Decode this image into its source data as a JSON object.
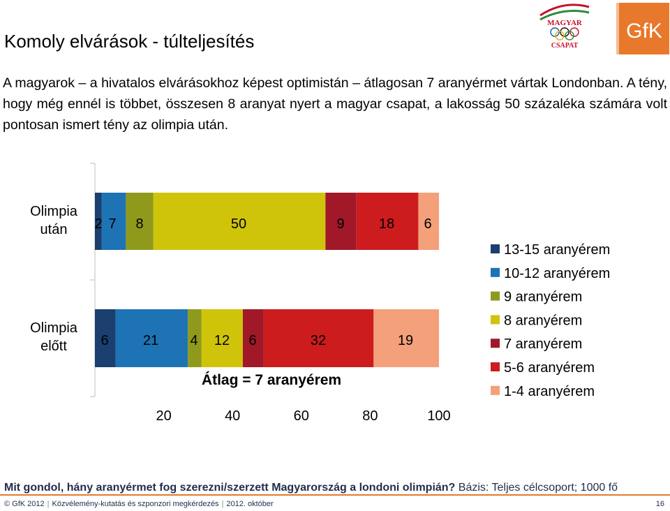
{
  "title": "Komoly elvárások - túlteljesítés",
  "intro": "A magyarok – a hivatalos elvárásokhoz képest optimistán – átlagosan 7 aranyérmet vártak Londonban. A tény, hogy még ennél is többet, összesen 8 aranyat nyert a magyar csapat, a lakosság 50 százaléka számára volt pontosan ismert tény az olimpia után.",
  "logos": {
    "magyar_line1": "MAGYAR",
    "magyar_line2": "CSAPAT",
    "gfk": "GfK"
  },
  "chart_data": {
    "type": "bar",
    "orientation": "horizontal-stacked",
    "categories": [
      "Olimpia után",
      "Olimpia előtt"
    ],
    "series": [
      {
        "name": "13-15 aranyérem",
        "color": "#1b3f6e",
        "values": [
          2,
          6
        ]
      },
      {
        "name": "10-12 aranyérem",
        "color": "#1e73b5",
        "values": [
          7,
          21
        ]
      },
      {
        "name": "9 aranyérem",
        "color": "#8f9a1c",
        "values": [
          8,
          4
        ]
      },
      {
        "name": "8 aranyérem",
        "color": "#cfc40a",
        "values": [
          50,
          12
        ]
      },
      {
        "name": "7 aranyérem",
        "color": "#a11828",
        "values": [
          9,
          6
        ]
      },
      {
        "name": "5-6 aranyérem",
        "color": "#cc1c1e",
        "values": [
          18,
          32
        ]
      },
      {
        "name": "1-4 aranyérem",
        "color": "#f4a07a",
        "values": [
          6,
          19
        ]
      }
    ],
    "xlim": [
      0,
      100
    ],
    "xticks": [
      20,
      40,
      60,
      80,
      100
    ],
    "annotation": "Átlag = 7 aranyérem",
    "legend_position": "right"
  },
  "footnote": {
    "question": "Mit gondol, hány aranyérmet fog szerezni/szerzett Magyarország a londoni olimpián?",
    "base": " Bázis: Teljes célcsoport; 1000 fő"
  },
  "footer": {
    "parts": [
      "© GfK 2012",
      "Közvélemény-kutatás és szponzori megkérdezés",
      "2012. október"
    ],
    "page": "16"
  }
}
